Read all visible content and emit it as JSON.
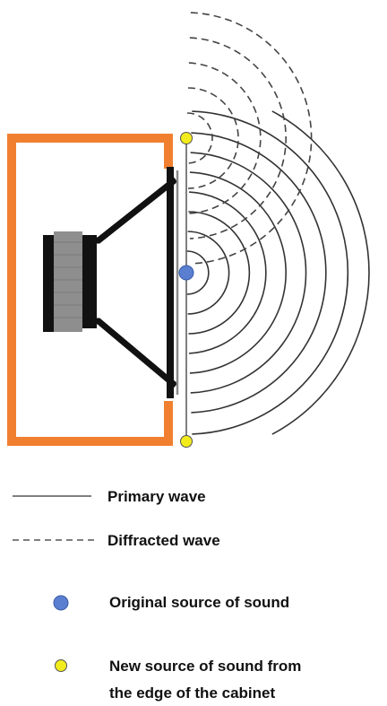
{
  "legend": {
    "primary_wave": "Primary wave",
    "diffracted_wave": "Diffracted wave",
    "original_source": "Original source of sound",
    "new_source_line1": "New source of sound from",
    "new_source_line2": "the edge of the cabinet"
  },
  "colors": {
    "cabinet": "#f08030",
    "primary_wave": "#333333",
    "diffracted_wave": "#444444",
    "original_source": "#5a7fd1",
    "new_source": "#f2ec1c",
    "magnet": "#8e8e8e",
    "driver": "#111111"
  },
  "icons": {
    "original_source": "blue-dot-icon",
    "new_source": "yellow-dot-icon"
  }
}
